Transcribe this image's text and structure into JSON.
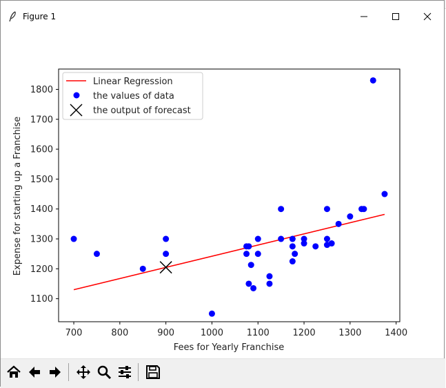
{
  "window": {
    "title": "Figure 1",
    "controls": [
      "minimize-icon",
      "maximize-icon",
      "close-icon"
    ]
  },
  "toolbar": {
    "buttons": [
      "home-icon",
      "back-arrow-icon",
      "forward-arrow-icon",
      "pan-icon",
      "zoom-icon",
      "configure-subplots-icon",
      "save-icon"
    ]
  },
  "colors": {
    "regression_line": "#ff0000",
    "data_points": "#0000ff",
    "forecast_marker": "#000000"
  },
  "chart_data": {
    "type": "scatter",
    "xlabel": "Fees for Yearly Franchise",
    "ylabel": "Expense for starting up a Franchise",
    "xlim": [
      667,
      1408
    ],
    "ylim": [
      1023,
      1868
    ],
    "xticks": [
      700,
      800,
      900,
      1000,
      1100,
      1200,
      1300,
      1400
    ],
    "yticks": [
      1100,
      1200,
      1300,
      1400,
      1500,
      1600,
      1700,
      1800
    ],
    "legend": {
      "placement": "upper-left",
      "entries": [
        "Linear Regression",
        "the values of data",
        "the output of forecast"
      ]
    },
    "series": [
      {
        "name": "Linear Regression",
        "kind": "line",
        "x": [
          700,
          1375
        ],
        "y": [
          1130,
          1382
        ]
      },
      {
        "name": "the values of data",
        "kind": "scatter",
        "x": [
          700,
          750,
          850,
          900,
          900,
          1000,
          1075,
          1075,
          1080,
          1080,
          1085,
          1090,
          1100,
          1100,
          1125,
          1125,
          1150,
          1150,
          1175,
          1175,
          1175,
          1180,
          1200,
          1200,
          1225,
          1250,
          1250,
          1250,
          1260,
          1275,
          1300,
          1325,
          1330,
          1350,
          1375
        ],
        "y": [
          1300,
          1250,
          1200,
          1300,
          1250,
          1050,
          1275,
          1250,
          1275,
          1150,
          1213,
          1135,
          1300,
          1250,
          1175,
          1150,
          1300,
          1400,
          1300,
          1275,
          1225,
          1250,
          1285,
          1300,
          1275,
          1400,
          1300,
          1280,
          1285,
          1350,
          1375,
          1400,
          1400,
          1830,
          1450
        ]
      },
      {
        "name": "the output of forecast",
        "kind": "marker",
        "x": [
          900
        ],
        "y": [
          1205
        ]
      }
    ]
  }
}
